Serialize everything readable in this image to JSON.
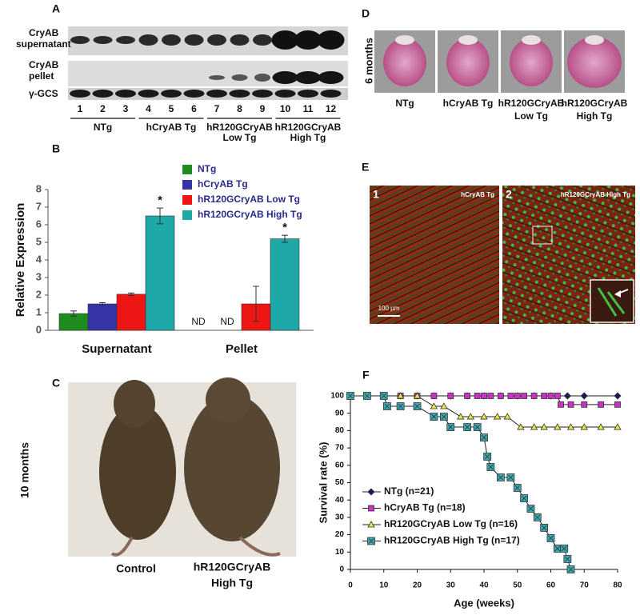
{
  "panel_a": {
    "label": "A",
    "row_labels": [
      [
        "CryAB",
        "supernatant"
      ],
      [
        "CryAB",
        "pellet"
      ],
      [
        "γ-GCS"
      ]
    ],
    "lanes": [
      "1",
      "2",
      "3",
      "4",
      "5",
      "6",
      "7",
      "8",
      "9",
      "10",
      "11",
      "12"
    ],
    "groups": [
      [
        "NTg"
      ],
      [
        "hCryAB Tg"
      ],
      [
        "hR120GCryAB",
        "Low Tg"
      ],
      [
        "hR120GCryAB",
        "High Tg"
      ]
    ]
  },
  "panel_c": {
    "label": "C",
    "age": "10 months",
    "captions": [
      [
        "Control"
      ],
      [
        "hR120GCryAB",
        "High Tg"
      ]
    ]
  },
  "panel_d": {
    "label": "D",
    "age": "6 months",
    "captions": [
      [
        "NTg"
      ],
      [
        "hCryAB Tg"
      ],
      [
        "hR120GCryAB",
        "Low Tg"
      ],
      [
        "hR120GCryAB",
        "High Tg"
      ]
    ]
  },
  "panel_e": {
    "label": "E",
    "images": [
      {
        "number": "1",
        "title": "hCryAB Tg"
      },
      {
        "number": "2",
        "title": "hR120GCryAB High Tg"
      }
    ],
    "scale_bar": "100 µm"
  },
  "chart_data": [
    {
      "type": "bar",
      "panel": "B",
      "ylabel": "Relative Expression",
      "categories": [
        "Supernatant",
        "Pellet"
      ],
      "series": [
        {
          "name": "NTg",
          "color": "#1e8c1e",
          "values": [
            0.95,
            null
          ],
          "errors": [
            0.15,
            null
          ],
          "value_labels": [
            null,
            "ND"
          ]
        },
        {
          "name": "hCryAB Tg",
          "color": "#3535a8",
          "values": [
            1.5,
            null
          ],
          "errors": [
            0.07,
            null
          ],
          "value_labels": [
            null,
            "ND"
          ]
        },
        {
          "name": "hR120GCryAB Low Tg",
          "color": "#ee1515",
          "values": [
            2.05,
            1.5
          ],
          "errors": [
            0.07,
            1.0
          ]
        },
        {
          "name": "hR120GCryAB High Tg",
          "color": "#1ea8a8",
          "values": [
            6.5,
            5.2
          ],
          "errors": [
            0.45,
            0.2
          ],
          "significance": [
            "*",
            "*"
          ]
        }
      ],
      "ylim": [
        0,
        8
      ],
      "yticks": [
        0,
        1,
        2,
        3,
        4,
        5,
        6,
        7,
        8
      ],
      "legend": "top-right"
    },
    {
      "type": "line",
      "panel": "F",
      "xlabel": "Age (weeks)",
      "ylabel": "Survival rate (%)",
      "series": [
        {
          "name": "NTg (n=21)",
          "color": "#1a1a5e",
          "marker": "diamond",
          "x": [
            0,
            5,
            10,
            15,
            20,
            25,
            30,
            35,
            40,
            45,
            50,
            55,
            60,
            65,
            70,
            80
          ],
          "values": [
            100,
            100,
            100,
            100,
            100,
            100,
            100,
            100,
            100,
            100,
            100,
            100,
            100,
            100,
            100,
            100
          ]
        },
        {
          "name": "hCryAB Tg (n=18)",
          "color": "#c832c8",
          "marker": "square",
          "x": [
            0,
            5,
            10,
            15,
            20,
            25,
            30,
            35,
            38,
            40,
            42,
            45,
            48,
            50,
            52,
            55,
            58,
            60,
            62,
            63,
            66,
            70,
            75,
            80
          ],
          "values": [
            100,
            100,
            100,
            100,
            100,
            100,
            100,
            100,
            100,
            100,
            100,
            100,
            100,
            100,
            100,
            100,
            100,
            100,
            100,
            95,
            95,
            95,
            95,
            95
          ]
        },
        {
          "name": "hR120GCryAB Low Tg (n=16)",
          "color": "#e8e83c",
          "marker": "triangle",
          "x": [
            0,
            5,
            10,
            15,
            20,
            25,
            28,
            33,
            36,
            40,
            44,
            47,
            51,
            55,
            58,
            62,
            66,
            70,
            75,
            80
          ],
          "values": [
            100,
            100,
            100,
            100,
            100,
            94,
            94,
            88,
            88,
            88,
            88,
            88,
            82,
            82,
            82,
            82,
            82,
            82,
            82,
            82
          ]
        },
        {
          "name": "hR120GCryAB High Tg (n=17)",
          "color": "#3aaab0",
          "marker": "cross-square",
          "x": [
            0,
            5,
            10,
            11,
            15,
            20,
            25,
            28,
            30,
            35,
            38,
            40,
            41,
            42,
            45,
            48,
            50,
            52,
            54,
            56,
            58,
            60,
            62,
            64,
            65,
            66
          ],
          "values": [
            100,
            100,
            100,
            94,
            94,
            94,
            88,
            88,
            82,
            82,
            82,
            76,
            65,
            59,
            53,
            53,
            47,
            41,
            35,
            30,
            24,
            18,
            12,
            12,
            6,
            0
          ]
        }
      ],
      "xlim": [
        0,
        80
      ],
      "xticks": [
        0,
        10,
        20,
        30,
        40,
        50,
        60,
        70,
        80
      ],
      "ylim": [
        0,
        100
      ],
      "yticks": [
        0,
        10,
        20,
        30,
        40,
        50,
        60,
        70,
        80,
        90,
        100
      ],
      "legend": "bottom-left"
    }
  ]
}
